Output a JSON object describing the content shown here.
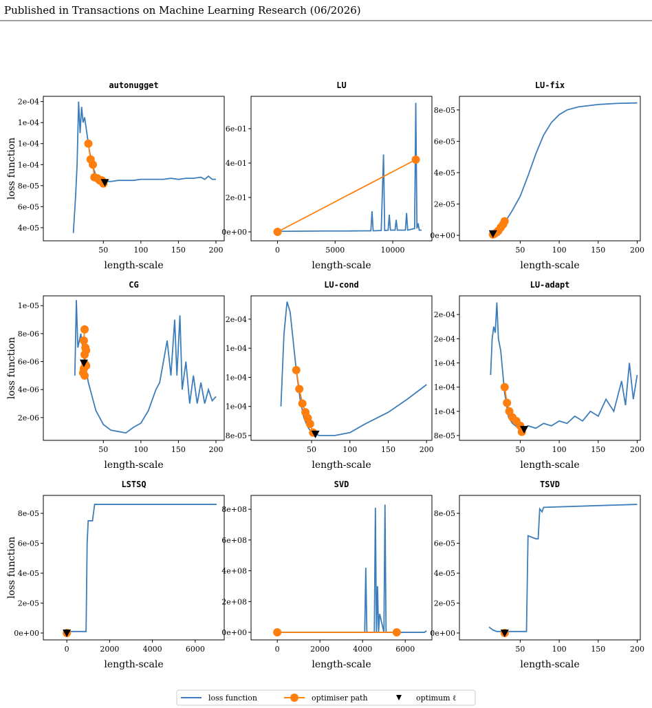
{
  "header": {
    "text": "Published in Transactions on Machine Learning Research (06/2026)"
  },
  "legend": {
    "items": [
      {
        "name": "loss function",
        "color": "#3b7dba"
      },
      {
        "name": "optimiser path",
        "color": "#ff7f0e"
      },
      {
        "name": "optimum ℓ",
        "color": "#000000"
      }
    ]
  },
  "chart_data": [
    {
      "type": "line",
      "title": "autonugget",
      "xlabel": "length-scale",
      "ylabel": "loss function",
      "xlim": [
        -30,
        211
      ],
      "ylim": [
        2.75e-05,
        0.000165
      ],
      "xticks": [
        50,
        100,
        150,
        200
      ],
      "yticks": [
        {
          "value": 4e-05,
          "label": "4e-05"
        },
        {
          "value": 6e-05,
          "label": "6e-05"
        },
        {
          "value": 8e-05,
          "label": "8e-05"
        },
        {
          "value": 0.0001,
          "label": "1e-04"
        },
        {
          "value": 0.00012,
          "label": "1e-04"
        },
        {
          "value": 0.00014,
          "label": "1e-04"
        },
        {
          "value": 0.00016,
          "label": "2e-04"
        }
      ],
      "loss": {
        "x": [
          10,
          13,
          15,
          17,
          19,
          21,
          23,
          25,
          28,
          31,
          35,
          40,
          45,
          50,
          60,
          70,
          80,
          90,
          100,
          110,
          120,
          130,
          140,
          150,
          160,
          170,
          180,
          185,
          190,
          195,
          200
        ],
        "values": [
          3.5e-05,
          7e-05,
          0.0001,
          0.00016,
          0.00013,
          0.000155,
          0.00014,
          0.000145,
          0.00013,
          0.000115,
          0.0001,
          9e-05,
          8.6e-05,
          8.4e-05,
          8.4e-05,
          8.5e-05,
          8.5e-05,
          8.5e-05,
          8.6e-05,
          8.6e-05,
          8.6e-05,
          8.6e-05,
          8.7e-05,
          8.6e-05,
          8.7e-05,
          8.7e-05,
          8.8e-05,
          8.6e-05,
          8.9e-05,
          8.6e-05,
          8.6e-05
        ]
      },
      "path": {
        "x": [
          30,
          33,
          36,
          38,
          42,
          45,
          48,
          50
        ],
        "values": [
          0.00012,
          0.000105,
          0.0001,
          8.8e-05,
          8.7e-05,
          8.5e-05,
          8.5e-05,
          8.2e-05
        ]
      },
      "optimum": {
        "x": [
          52
        ],
        "values": [
          8.3e-05
        ]
      }
    },
    {
      "type": "line",
      "title": "LU",
      "xlabel": "length-scale",
      "xlim": [
        -2300,
        13400
      ],
      "ylim": [
        -0.052,
        0.788
      ],
      "xticks": [
        0,
        5000,
        10000
      ],
      "yticks": [
        {
          "value": 0,
          "label": "0e+00"
        },
        {
          "value": 0.2,
          "label": "2e-01"
        },
        {
          "value": 0.4,
          "label": "4e-01"
        },
        {
          "value": 0.6,
          "label": "6e-01"
        }
      ],
      "loss": {
        "x": [
          0,
          2000,
          4000,
          6000,
          7500,
          8100,
          8200,
          8300,
          9000,
          9200,
          9300,
          9600,
          9700,
          9800,
          10200,
          10300,
          10400,
          11100,
          11200,
          11300,
          11900,
          12000,
          12100,
          12200,
          12300,
          12500
        ],
        "values": [
          0.003,
          0.004,
          0.005,
          0.005,
          0.006,
          0.006,
          0.12,
          0.006,
          0.008,
          0.45,
          0.008,
          0.01,
          0.1,
          0.01,
          0.01,
          0.07,
          0.01,
          0.01,
          0.11,
          0.01,
          0.02,
          0.75,
          0.02,
          0.05,
          0.01,
          0.01
        ]
      },
      "path": {
        "x": [
          0,
          12000
        ],
        "values": [
          0,
          0.42
        ]
      }
    },
    {
      "type": "line",
      "title": "LU-fix",
      "xlabel": "length-scale",
      "xlim": [
        -28,
        204
      ],
      "ylim": [
        -3.5e-06,
        8.87e-05
      ],
      "xticks": [
        50,
        100,
        150,
        200
      ],
      "yticks": [
        {
          "value": 0,
          "label": "0e+00"
        },
        {
          "value": 2e-05,
          "label": "2e-05"
        },
        {
          "value": 4e-05,
          "label": "4e-05"
        },
        {
          "value": 6e-05,
          "label": "6e-05"
        },
        {
          "value": 8e-05,
          "label": "8e-05"
        }
      ],
      "loss": {
        "x": [
          15,
          20,
          30,
          40,
          50,
          60,
          70,
          80,
          90,
          100,
          110,
          125,
          150,
          175,
          200
        ],
        "values": [
          1e-06,
          2e-06,
          8e-06,
          1.6e-05,
          2.5e-05,
          3.8e-05,
          5.2e-05,
          6.4e-05,
          7.2e-05,
          7.7e-05,
          8e-05,
          8.2e-05,
          8.35e-05,
          8.42e-05,
          8.45e-05
        ]
      },
      "path": {
        "x": [
          30,
          28,
          25,
          22,
          20,
          17,
          15
        ],
        "values": [
          9e-06,
          7e-06,
          5e-06,
          3e-06,
          2e-06,
          1e-06,
          5e-07
        ]
      },
      "optimum": {
        "x": [
          15
        ],
        "values": [
          1e-06
        ]
      }
    },
    {
      "type": "line",
      "title": "CG",
      "xlabel": "length-scale",
      "ylabel": "loss function",
      "xlim": [
        -30,
        211
      ],
      "ylim": [
        3.7e-07,
        1.07e-05
      ],
      "xticks": [
        50,
        100,
        150,
        200
      ],
      "yticks": [
        {
          "value": 2e-06,
          "label": "2e-06"
        },
        {
          "value": 4e-06,
          "label": "4e-06"
        },
        {
          "value": 6e-06,
          "label": "6e-06"
        },
        {
          "value": 8e-06,
          "label": "8e-06"
        },
        {
          "value": 1e-05,
          "label": "1e-05"
        }
      ],
      "loss": {
        "x": [
          12,
          14,
          16,
          20,
          25,
          30,
          40,
          50,
          60,
          70,
          80,
          90,
          100,
          110,
          120,
          125,
          130,
          135,
          140,
          145,
          148,
          152,
          155,
          160,
          165,
          170,
          175,
          180,
          185,
          190,
          195,
          200
        ],
        "values": [
          5e-06,
          1.04e-05,
          7e-06,
          8e-06,
          6e-06,
          4.5e-06,
          2.5e-06,
          1.5e-06,
          1.1e-06,
          1e-06,
          9e-07,
          1.3e-06,
          1.6e-06,
          2.5e-06,
          4e-06,
          4.5e-06,
          6e-06,
          7.5e-06,
          5e-06,
          9e-06,
          5e-06,
          9.3e-06,
          4e-06,
          6e-06,
          3e-06,
          5e-06,
          3e-06,
          4.5e-06,
          3e-06,
          4e-06,
          3.2e-06,
          3.5e-06
        ]
      },
      "path": {
        "x": [
          25,
          24,
          26,
          25,
          27,
          24,
          26,
          25,
          23,
          27
        ],
        "values": [
          8.3e-06,
          7.5e-06,
          7e-06,
          6.5e-06,
          6.8e-06,
          5.5e-06,
          5.8e-06,
          5e-06,
          5.2e-06,
          5.7e-06
        ]
      },
      "optimum": {
        "x": [
          24
        ],
        "values": [
          5.9e-06
        ]
      }
    },
    {
      "type": "line",
      "title": "LU-cond",
      "xlabel": "length-scale",
      "xlim": [
        -29,
        207
      ],
      "ylim": [
        7.67e-05,
        0.000176
      ],
      "xticks": [
        50,
        100,
        150,
        200
      ],
      "yticks": [
        {
          "value": 8e-05,
          "label": "8e-05"
        },
        {
          "value": 0.0001,
          "label": "1e-04"
        },
        {
          "value": 0.00012,
          "label": "1e-04"
        },
        {
          "value": 0.00014,
          "label": "1e-04"
        },
        {
          "value": 0.00016,
          "label": "2e-04"
        }
      ],
      "loss": {
        "x": [
          10,
          14,
          18,
          22,
          26,
          30,
          35,
          40,
          45,
          50,
          60,
          80,
          100,
          120,
          150,
          175,
          200
        ],
        "values": [
          0.0001,
          0.00015,
          0.000172,
          0.000165,
          0.000145,
          0.000125,
          0.000105,
          9.2e-05,
          8.6e-05,
          8.2e-05,
          8e-05,
          8e-05,
          8.2e-05,
          8.8e-05,
          9.6e-05,
          0.000105,
          0.000115
        ]
      },
      "path": {
        "x": [
          30,
          34,
          38,
          42,
          45,
          48,
          52
        ],
        "values": [
          0.000125,
          0.000112,
          0.000102,
          9.6e-05,
          9.2e-05,
          8.8e-05,
          8.2e-05
        ]
      },
      "optimum": {
        "x": [
          55
        ],
        "values": [
          8.1e-05
        ]
      }
    },
    {
      "type": "line",
      "title": "LU-adapt",
      "xlabel": "length-scale",
      "xlim": [
        -28,
        204
      ],
      "ylim": [
        7.6e-05,
        0.0001954
      ],
      "xticks": [
        50,
        100,
        150,
        200
      ],
      "yticks": [
        {
          "value": 8e-05,
          "label": "8e-05"
        },
        {
          "value": 0.0001,
          "label": "1e-04"
        },
        {
          "value": 0.00012,
          "label": "1e-04"
        },
        {
          "value": 0.00014,
          "label": "1e-04"
        },
        {
          "value": 0.00016,
          "label": "2e-04"
        },
        {
          "value": 0.00018,
          "label": "2e-04"
        }
      ],
      "loss": {
        "x": [
          12,
          14,
          16,
          18,
          20,
          22,
          25,
          30,
          35,
          40,
          50,
          60,
          70,
          80,
          90,
          100,
          110,
          120,
          130,
          140,
          150,
          160,
          170,
          180,
          185,
          190,
          195,
          200
        ],
        "values": [
          0.00013,
          0.00016,
          0.00017,
          0.000165,
          0.00019,
          0.00016,
          0.00015,
          0.000115,
          9.5e-05,
          9e-05,
          8.5e-05,
          8.8e-05,
          8.6e-05,
          9e-05,
          8.8e-05,
          9.2e-05,
          9e-05,
          9.6e-05,
          9.2e-05,
          0.0001,
          9.6e-05,
          0.00011,
          0.0001,
          0.000125,
          0.000105,
          0.00014,
          0.00011,
          0.00013
        ]
      },
      "path": {
        "x": [
          30,
          33,
          36,
          40,
          45,
          50,
          52
        ],
        "values": [
          0.00012,
          0.000107,
          0.0001,
          9.5e-05,
          9.2e-05,
          8.8e-05,
          8.3e-05
        ]
      },
      "optimum": {
        "x": [
          55
        ],
        "values": [
          8.5e-05
        ]
      }
    },
    {
      "type": "line",
      "title": "LSTSQ",
      "xlabel": "length-scale",
      "ylabel": "loss function",
      "xlim": [
        -1097,
        7355
      ],
      "ylim": [
        -4.6e-06,
        9.2e-05
      ],
      "xticks": [
        0,
        2000,
        4000,
        6000
      ],
      "yticks": [
        {
          "value": 0,
          "label": "0e+00"
        },
        {
          "value": 2e-05,
          "label": "2e-05"
        },
        {
          "value": 4e-05,
          "label": "4e-05"
        },
        {
          "value": 6e-05,
          "label": "6e-05"
        },
        {
          "value": 8e-05,
          "label": "8e-05"
        }
      ],
      "loss": {
        "x": [
          0,
          900,
          950,
          1000,
          1200,
          1300,
          7000
        ],
        "values": [
          1e-06,
          1e-06,
          6e-05,
          7.5e-05,
          7.5e-05,
          8.6e-05,
          8.6e-05
        ]
      },
      "path": {
        "x": [
          0
        ],
        "values": [
          0
        ]
      },
      "optimum": {
        "x": [
          0
        ],
        "values": [
          0
        ]
      }
    },
    {
      "type": "line",
      "title": "SVD",
      "xlabel": "length-scale",
      "xlim": [
        -1230,
        7250
      ],
      "ylim": [
        -49000000,
        890000000
      ],
      "xticks": [
        0,
        2000,
        4000,
        6000
      ],
      "yticks": [
        {
          "value": 0,
          "label": "0e+00"
        },
        {
          "value": 200000000,
          "label": "2e+08"
        },
        {
          "value": 400000000,
          "label": "4e+08"
        },
        {
          "value": 600000000,
          "label": "6e+08"
        },
        {
          "value": 800000000,
          "label": "8e+08"
        }
      ],
      "loss": {
        "x": [
          0,
          4100,
          4150,
          4200,
          4550,
          4600,
          4650,
          4700,
          4750,
          4800,
          5000,
          5050,
          5100,
          6900,
          7000
        ],
        "values": [
          0,
          0,
          420000000,
          0,
          0,
          810000000,
          0,
          300000000,
          0,
          120000000,
          0,
          830000000,
          0,
          0,
          10000000
        ]
      },
      "path": {
        "x": [
          0,
          5600
        ],
        "values": [
          0,
          0
        ]
      }
    },
    {
      "type": "line",
      "title": "TSVD",
      "xlabel": "length-scale",
      "xlim": [
        -28,
        204
      ],
      "ylim": [
        -4.6e-06,
        9.2e-05
      ],
      "xticks": [
        50,
        100,
        150,
        200
      ],
      "yticks": [
        {
          "value": 0,
          "label": "0e+00"
        },
        {
          "value": 2e-05,
          "label": "2e-05"
        },
        {
          "value": 4e-05,
          "label": "4e-05"
        },
        {
          "value": 6e-05,
          "label": "6e-05"
        },
        {
          "value": 8e-05,
          "label": "8e-05"
        }
      ],
      "loss": {
        "x": [
          10,
          15,
          20,
          58,
          60,
          65,
          70,
          73,
          75,
          78,
          80,
          200
        ],
        "values": [
          4e-06,
          2e-06,
          1e-06,
          1e-06,
          6.5e-05,
          6.4e-05,
          6.3e-05,
          6.3e-05,
          8.3e-05,
          8.1e-05,
          8.4e-05,
          8.6e-05
        ]
      },
      "path": {
        "x": [
          30
        ],
        "values": [
          0
        ]
      },
      "optimum": {
        "x": [
          30
        ],
        "values": [
          0
        ]
      }
    }
  ]
}
